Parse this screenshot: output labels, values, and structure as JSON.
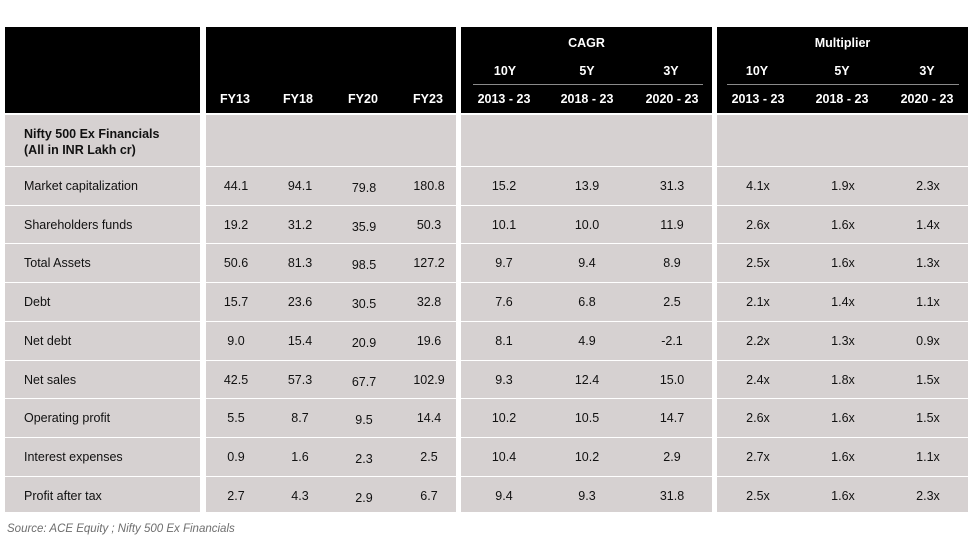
{
  "header": {
    "groups": {
      "cagr": "CAGR",
      "multiplier": "Multiplier"
    },
    "fy_columns": [
      "FY13",
      "FY18",
      "FY20",
      "FY23"
    ],
    "periods": [
      "10Y",
      "5Y",
      "3Y"
    ],
    "ranges": [
      "2013 - 23",
      "2018 - 23",
      "2020 - 23"
    ]
  },
  "section_title_line1": "Nifty 500 Ex Financials",
  "section_title_line2": "(All in INR Lakh cr)",
  "rows": [
    {
      "label": "Market capitalization",
      "fy": [
        "44.1",
        "94.1",
        "79.8",
        "180.8"
      ],
      "cagr": [
        "15.2",
        "13.9",
        "31.3"
      ],
      "mult": [
        "4.1x",
        "1.9x",
        "2.3x"
      ]
    },
    {
      "label": "Shareholders funds",
      "fy": [
        "19.2",
        "31.2",
        "35.9",
        "50.3"
      ],
      "cagr": [
        "10.1",
        "10.0",
        "11.9"
      ],
      "mult": [
        "2.6x",
        "1.6x",
        "1.4x"
      ]
    },
    {
      "label": "Total Assets",
      "fy": [
        "50.6",
        "81.3",
        "98.5",
        "127.2"
      ],
      "cagr": [
        "9.7",
        "9.4",
        "8.9"
      ],
      "mult": [
        "2.5x",
        "1.6x",
        "1.3x"
      ]
    },
    {
      "label": "Debt",
      "fy": [
        "15.7",
        "23.6",
        "30.5",
        "32.8"
      ],
      "cagr": [
        "7.6",
        "6.8",
        "2.5"
      ],
      "mult": [
        "2.1x",
        "1.4x",
        "1.1x"
      ]
    },
    {
      "label": "Net debt",
      "fy": [
        "9.0",
        "15.4",
        "20.9",
        "19.6"
      ],
      "cagr": [
        "8.1",
        "4.9",
        "-2.1"
      ],
      "mult": [
        "2.2x",
        "1.3x",
        "0.9x"
      ]
    },
    {
      "label": "Net sales",
      "fy": [
        "42.5",
        "57.3",
        "67.7",
        "102.9"
      ],
      "cagr": [
        "9.3",
        "12.4",
        "15.0"
      ],
      "mult": [
        "2.4x",
        "1.8x",
        "1.5x"
      ]
    },
    {
      "label": "Operating profit",
      "fy": [
        "5.5",
        "8.7",
        "9.5",
        "14.4"
      ],
      "cagr": [
        "10.2",
        "10.5",
        "14.7"
      ],
      "mult": [
        "2.6x",
        "1.6x",
        "1.5x"
      ]
    },
    {
      "label": "Interest expenses",
      "fy": [
        "0.9",
        "1.6",
        "2.3",
        "2.5"
      ],
      "cagr": [
        "10.4",
        "10.2",
        "2.9"
      ],
      "mult": [
        "2.7x",
        "1.6x",
        "1.1x"
      ]
    },
    {
      "label": "Profit after tax",
      "fy": [
        "2.7",
        "4.3",
        "2.9",
        "6.7"
      ],
      "cagr": [
        "9.4",
        "9.3",
        "31.8"
      ],
      "mult": [
        "2.5x",
        "1.6x",
        "2.3x"
      ]
    }
  ],
  "source": "Source: ACE Equity ; Nifty 500 Ex Financials",
  "colors": {
    "header_bg": "#000000",
    "body_bg": "#d6d1d1",
    "separator": "#ffffff"
  }
}
